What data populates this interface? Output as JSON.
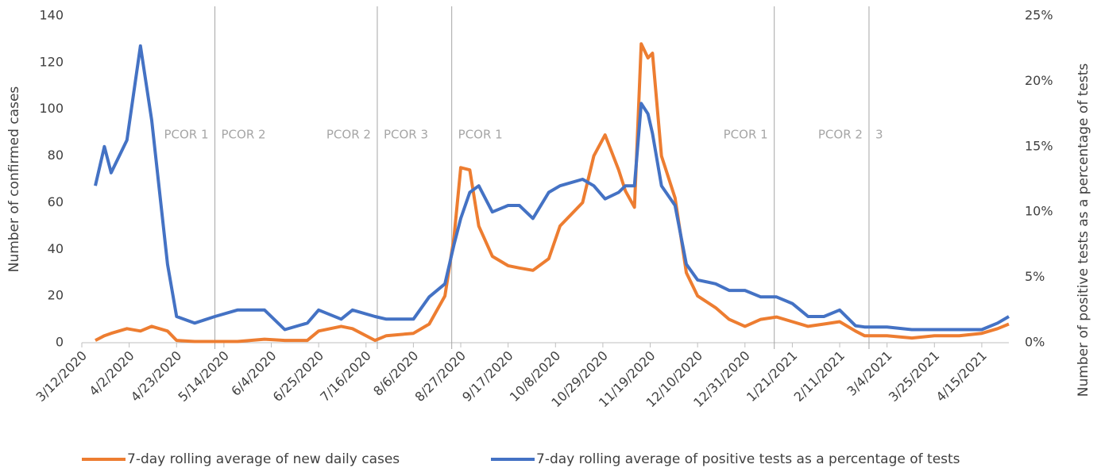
{
  "chart_data": {
    "type": "line",
    "y_label": "Number of confirmed cases",
    "y2_label": "Number of positive tests as a percentage of tests",
    "x": [
      "3/18/2020",
      "3/22/2020",
      "3/25/2020",
      "4/1/2020",
      "4/7/2020",
      "4/12/2020",
      "4/19/2020",
      "4/23/2020",
      "5/1/2020",
      "5/10/2020",
      "5/20/2020",
      "6/1/2020",
      "6/10/2020",
      "6/20/2020",
      "6/25/2020",
      "7/5/2020",
      "7/10/2020",
      "7/20/2020",
      "7/25/2020",
      "8/6/2020",
      "8/13/2020",
      "8/20/2020",
      "8/24/2020",
      "8/27/2020",
      "8/31/2020",
      "9/4/2020",
      "9/10/2020",
      "9/17/2020",
      "9/22/2020",
      "9/28/2020",
      "10/5/2020",
      "10/10/2020",
      "10/20/2020",
      "10/25/2020",
      "10/30/2020",
      "11/5/2020",
      "11/8/2020",
      "11/12/2020",
      "11/15/2020",
      "11/18/2020",
      "11/20/2020",
      "11/24/2020",
      "11/30/2020",
      "12/5/2020",
      "12/10/2020",
      "12/18/2020",
      "12/24/2020",
      "12/31/2020",
      "1/7/2021",
      "1/14/2021",
      "1/21/2021",
      "1/28/2021",
      "2/4/2021",
      "2/11/2021",
      "2/18/2021",
      "2/22/2021",
      "3/4/2021",
      "3/15/2021",
      "3/25/2021",
      "4/5/2021",
      "4/15/2021",
      "4/22/2021",
      "4/27/2021"
    ],
    "series": [
      {
        "name": "7-day rolling average of new daily cases",
        "color": "#ed7d31",
        "values": [
          1,
          3,
          4,
          6,
          5,
          7,
          5,
          1,
          0.5,
          0.5,
          0.5,
          1.5,
          1,
          1,
          5,
          7,
          6,
          1,
          3,
          4,
          8,
          20,
          45,
          75,
          74,
          50,
          37,
          33,
          32,
          31,
          36,
          50,
          60,
          80,
          89,
          74,
          65,
          58,
          128,
          122,
          124,
          80,
          62,
          30,
          20,
          15,
          10,
          7,
          10,
          11,
          9,
          7,
          8,
          9,
          5,
          3,
          3,
          2,
          3,
          3,
          4,
          6,
          8
        ]
      },
      {
        "name": "7-day rolling average of positive tests as a percentage of tests",
        "color": "#4472c4",
        "axis": "y2",
        "values": [
          12,
          15,
          13,
          15.5,
          22.7,
          17,
          6,
          2,
          1.5,
          2,
          2.5,
          2.5,
          1,
          1.5,
          2.5,
          1.8,
          2.5,
          2,
          1.8,
          1.8,
          3.5,
          4.5,
          7.5,
          9.5,
          11.5,
          12,
          10,
          10.5,
          10.5,
          9.5,
          11.5,
          12,
          12.5,
          12,
          11,
          11.5,
          12,
          12,
          18.3,
          17.5,
          16,
          12,
          10.5,
          6,
          4.8,
          4.5,
          4,
          4,
          3.5,
          3.5,
          3,
          2,
          2,
          2.5,
          1.3,
          1.2,
          1.2,
          1,
          1,
          1,
          1,
          1.5,
          2
        ]
      }
    ],
    "xlim": [
      "3/12/2020",
      "4/27/2021"
    ],
    "xticks": [
      "3/12/2020",
      "4/2/2020",
      "4/23/2020",
      "5/14/2020",
      "6/4/2020",
      "6/25/2020",
      "7/16/2020",
      "8/6/2020",
      "8/27/2020",
      "9/17/2020",
      "10/8/2020",
      "10/29/2020",
      "11/19/2020",
      "12/10/2020",
      "12/31/2020",
      "1/21/2021",
      "2/11/2021",
      "3/4/2021",
      "3/25/2021",
      "4/15/2021"
    ],
    "ylim": [
      0,
      140
    ],
    "yticks": [
      0,
      20,
      40,
      60,
      80,
      100,
      120,
      140
    ],
    "y2lim": [
      0,
      25
    ],
    "y2ticks": [
      {
        "value": 0,
        "label": "0%"
      },
      {
        "value": 5,
        "label": "5%"
      },
      {
        "value": 10,
        "label": "10%"
      },
      {
        "value": 15,
        "label": "15%"
      },
      {
        "value": 20,
        "label": "20%"
      },
      {
        "value": 25,
        "label": "25%"
      }
    ],
    "phase_lines": [
      "5/10/2020",
      "7/21/2020",
      "8/23/2020",
      "1/13/2021",
      "2/24/2021"
    ],
    "annotations": [
      {
        "text": "PCOR 1",
        "x": "5/10/2020",
        "side": "left"
      },
      {
        "text": "PCOR 2",
        "x": "5/10/2020",
        "side": "right"
      },
      {
        "text": "PCOR 2",
        "x": "7/21/2020",
        "side": "left"
      },
      {
        "text": "PCOR 3",
        "x": "7/21/2020",
        "side": "right"
      },
      {
        "text": "PCOR 1",
        "x": "8/23/2020",
        "side": "right"
      },
      {
        "text": "PCOR 1",
        "x": "1/13/2021",
        "side": "left"
      },
      {
        "text": "PCOR 2",
        "x": "2/24/2021",
        "side": "left"
      },
      {
        "text": "3",
        "x": "2/24/2021",
        "side": "right"
      }
    ],
    "legend": "bottom",
    "grid": false
  }
}
